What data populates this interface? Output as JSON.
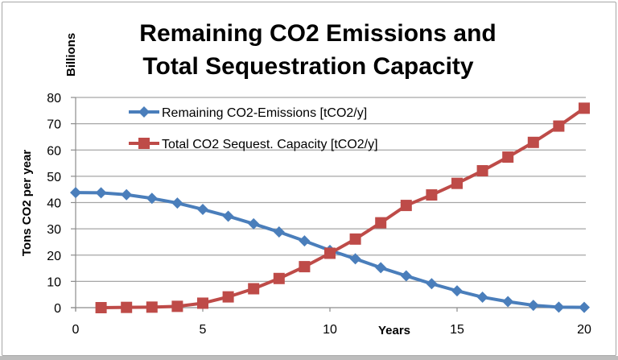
{
  "chart_data": {
    "type": "line",
    "title_lines": [
      "Remaining CO2 Emissions and",
      "Total Sequestration Capacity"
    ],
    "xlabel": "Years",
    "ylabel": "Tons CO2 per year",
    "yunit_label": "Billions",
    "xlim": [
      0,
      20
    ],
    "ylim": [
      0,
      80
    ],
    "xticks": [
      0,
      5,
      10,
      15,
      20
    ],
    "yticks": [
      0,
      10,
      20,
      30,
      40,
      50,
      60,
      70,
      80
    ],
    "grid": "horizontal",
    "legend_position": "top-left",
    "series": [
      {
        "name": "Remaining CO2-Emissions [tCO2/y]",
        "color": "#4a7ebb",
        "marker": "diamond",
        "x": [
          0,
          1,
          2,
          3,
          4,
          5,
          6,
          7,
          8,
          9,
          10,
          11,
          12,
          13,
          14,
          15,
          16,
          17,
          18,
          19,
          20
        ],
        "values": [
          43.8,
          43.7,
          43.0,
          41.6,
          39.8,
          37.4,
          34.8,
          31.9,
          28.8,
          25.4,
          21.8,
          18.6,
          15.2,
          12.1,
          9.1,
          6.4,
          4.0,
          2.3,
          0.9,
          0.2,
          0.1
        ]
      },
      {
        "name": "Total CO2 Sequest. Capacity [tCO2/y]",
        "color": "#be4b48",
        "marker": "square",
        "x": [
          1,
          2,
          3,
          4,
          5,
          6,
          7,
          8,
          9,
          10,
          11,
          12,
          13,
          14,
          15,
          16,
          17,
          18,
          19,
          20
        ],
        "values": [
          0.0,
          0.1,
          0.2,
          0.5,
          1.7,
          4.1,
          7.2,
          11.1,
          15.6,
          20.7,
          26.1,
          32.3,
          38.9,
          42.9,
          47.3,
          52.1,
          57.3,
          62.9,
          69.1,
          75.9
        ]
      }
    ]
  }
}
